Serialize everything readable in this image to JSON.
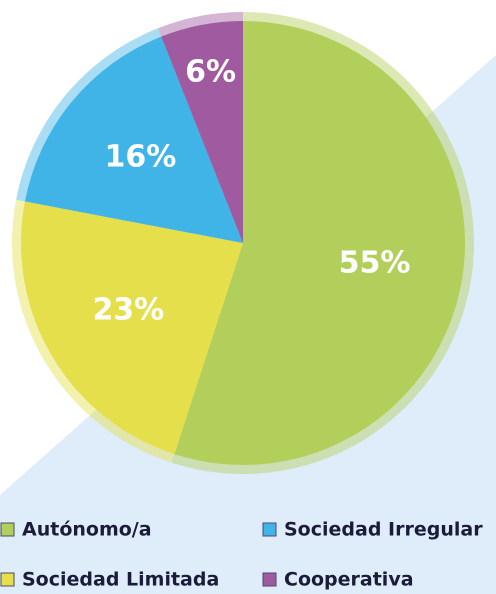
{
  "chart_data": {
    "type": "pie",
    "categories": [
      "Autónomo/a",
      "Sociedad Limitada",
      "Sociedad Irregular",
      "Cooperativa"
    ],
    "values": [
      55,
      23,
      16,
      6
    ],
    "value_labels": [
      "55%",
      "23%",
      "16%",
      "6%"
    ],
    "colors": [
      "#b3cf5b",
      "#e5df4b",
      "#41b4e7",
      "#a05a9f"
    ],
    "start_angle": 0,
    "direction": "clockwise",
    "legend": "bottom"
  }
}
